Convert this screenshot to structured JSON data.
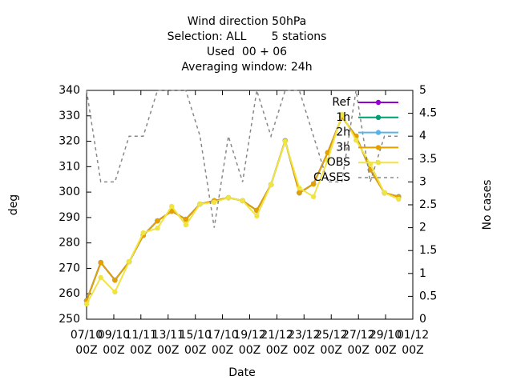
{
  "chart_data": {
    "type": "line",
    "title": [
      "Wind direction 50hPa",
      "Selection: ALL       5 stations",
      "Used  00 + 06",
      "Averaging window: 24h"
    ],
    "x_label": "Date",
    "y_label": "deg",
    "y2_label": "No cases",
    "x": [
      0,
      1,
      2,
      3,
      4,
      5,
      6,
      7,
      8,
      9,
      10,
      11,
      12,
      13,
      14,
      15,
      16,
      17,
      18,
      19,
      20,
      21,
      22
    ],
    "xlim": [
      0,
      23
    ],
    "xticks": [
      {
        "value": 0,
        "label": "07/10\n00Z"
      },
      {
        "value": 1.92,
        "label": "09/10\n00Z"
      },
      {
        "value": 3.83,
        "label": "11/11\n00Z"
      },
      {
        "value": 5.75,
        "label": "13/11\n00Z"
      },
      {
        "value": 7.67,
        "label": "15/10\n00Z"
      },
      {
        "value": 9.58,
        "label": "17/10\n00Z"
      },
      {
        "value": 11.5,
        "label": "19/12\n00Z"
      },
      {
        "value": 13.42,
        "label": "21/12\n00Z"
      },
      {
        "value": 15.33,
        "label": "23/12\n00Z"
      },
      {
        "value": 17.25,
        "label": "25/12\n00Z"
      },
      {
        "value": 19.17,
        "label": "27/12\n00Z"
      },
      {
        "value": 21.08,
        "label": "29/10\n00Z"
      },
      {
        "value": 23,
        "label": "01/12\n00Z"
      }
    ],
    "ylim": [
      250,
      340
    ],
    "yticks": [
      250,
      260,
      270,
      280,
      290,
      300,
      310,
      320,
      330,
      340
    ],
    "y2lim": [
      0,
      5
    ],
    "y2ticks": [
      0,
      0.5,
      1,
      1.5,
      2,
      2.5,
      3,
      3.5,
      4,
      4.5,
      5
    ],
    "series": [
      {
        "name": "Ref",
        "color": "#9400d3",
        "values": [
          257.3,
          272.3,
          265.4,
          272.6,
          283,
          288.7,
          292.5,
          289.3,
          295.3,
          296.6,
          297.8,
          296.6,
          292.8,
          302.9,
          320.2,
          299.7,
          303.2,
          315.5,
          329.6,
          322,
          308.8,
          299.7,
          298.2
        ]
      },
      {
        "name": "1h",
        "color": "#009e73",
        "values": [
          257.3,
          272.3,
          265.4,
          272.6,
          283,
          288.7,
          292.5,
          289.3,
          295.3,
          296.6,
          297.8,
          296.6,
          292.8,
          302.9,
          320.2,
          299.7,
          303.2,
          315.5,
          329.6,
          322,
          308.8,
          299.7,
          298.2
        ]
      },
      {
        "name": "2h",
        "color": "#56b4e9",
        "values": [
          257.3,
          272.3,
          265.4,
          272.6,
          283,
          288.7,
          292.5,
          289.3,
          295.3,
          296.6,
          297.8,
          296.6,
          292.8,
          302.9,
          320.2,
          299.7,
          303.2,
          315.5,
          329.6,
          322,
          308.8,
          299.7,
          298.2
        ]
      },
      {
        "name": "3h",
        "color": "#e69f00",
        "values": [
          257.3,
          272.3,
          265.4,
          272.6,
          283,
          288.7,
          292.5,
          289.3,
          295.3,
          296.6,
          297.8,
          296.6,
          292.8,
          302.9,
          320.2,
          299.7,
          303.2,
          315.5,
          329.6,
          322,
          308.8,
          299.7,
          298.2
        ]
      },
      {
        "name": "OBS",
        "color": "#f0e442",
        "values": [
          256,
          266.4,
          260.7,
          272.6,
          284,
          285.8,
          294.4,
          287.1,
          295.3,
          296,
          297.8,
          296.6,
          290.6,
          302.9,
          319.9,
          301.6,
          298.2,
          312.6,
          330.5,
          320.4,
          311,
          299.7,
          297.2
        ]
      },
      {
        "name": "CASES",
        "color": "#888888",
        "axis": "y2",
        "dashed": true,
        "values": [
          5,
          3,
          3,
          4,
          4,
          5,
          5,
          5,
          4,
          2,
          4,
          3,
          5,
          4,
          5,
          5,
          4,
          3,
          3,
          5,
          3,
          4,
          4
        ]
      }
    ]
  }
}
